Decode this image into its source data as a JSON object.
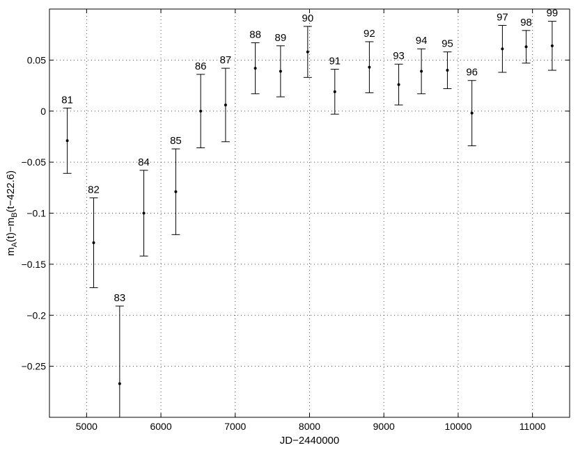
{
  "chart_data": {
    "type": "scatter",
    "title": "",
    "xlabel": "JD−2440000",
    "ylabel_main": "m",
    "ylabel_sub1": "A",
    "ylabel_mid": "(t)−m",
    "ylabel_sub2": "B",
    "ylabel_end": "(t−422.6)",
    "xlim": [
      4500,
      11500
    ],
    "ylim": [
      -0.3,
      0.1
    ],
    "grid": true,
    "xticks": [
      5000,
      6000,
      7000,
      8000,
      9000,
      10000,
      11000
    ],
    "xtick_labels": [
      "5000",
      "6000",
      "7000",
      "8000",
      "9000",
      "10000",
      "11000"
    ],
    "yticks": [
      0.05,
      0,
      -0.05,
      -0.1,
      -0.15,
      -0.2,
      -0.25
    ],
    "ytick_labels": [
      "0.05",
      "0",
      "−0.05",
      "−0.1",
      "−0.15",
      "−0.2",
      "−0.25"
    ],
    "points": [
      {
        "label": "81",
        "x": 4740,
        "y": -0.029,
        "err": 0.032
      },
      {
        "label": "82",
        "x": 5095,
        "y": -0.129,
        "err": 0.044
      },
      {
        "label": "83",
        "x": 5445,
        "y": -0.267,
        "err": 0.076
      },
      {
        "label": "84",
        "x": 5770,
        "y": -0.1,
        "err": 0.042
      },
      {
        "label": "85",
        "x": 6200,
        "y": -0.079,
        "err": 0.042
      },
      {
        "label": "86",
        "x": 6535,
        "y": 0.0,
        "err": 0.036
      },
      {
        "label": "87",
        "x": 6870,
        "y": 0.006,
        "err": 0.036
      },
      {
        "label": "88",
        "x": 7270,
        "y": 0.042,
        "err": 0.025
      },
      {
        "label": "89",
        "x": 7610,
        "y": 0.039,
        "err": 0.025
      },
      {
        "label": "90",
        "x": 7975,
        "y": 0.058,
        "err": 0.025
      },
      {
        "label": "91",
        "x": 8340,
        "y": 0.019,
        "err": 0.022
      },
      {
        "label": "92",
        "x": 8805,
        "y": 0.043,
        "err": 0.025
      },
      {
        "label": "93",
        "x": 9200,
        "y": 0.026,
        "err": 0.02
      },
      {
        "label": "94",
        "x": 9505,
        "y": 0.039,
        "err": 0.022
      },
      {
        "label": "95",
        "x": 9855,
        "y": 0.04,
        "err": 0.018
      },
      {
        "label": "96",
        "x": 10185,
        "y": -0.002,
        "err": 0.032
      },
      {
        "label": "97",
        "x": 10595,
        "y": 0.061,
        "err": 0.023
      },
      {
        "label": "98",
        "x": 10915,
        "y": 0.063,
        "err": 0.016
      },
      {
        "label": "99",
        "x": 11265,
        "y": 0.064,
        "err": 0.024
      }
    ]
  }
}
